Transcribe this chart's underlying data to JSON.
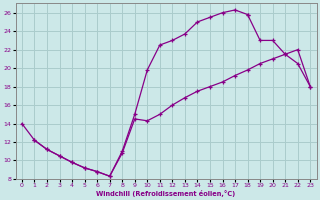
{
  "xlabel": "Windchill (Refroidissement éolien,°C)",
  "bg_color": "#cce8e8",
  "line_color": "#880088",
  "grid_color": "#aacccc",
  "xlim": [
    -0.5,
    23.5
  ],
  "ylim": [
    8,
    27
  ],
  "xticks": [
    0,
    1,
    2,
    3,
    4,
    5,
    6,
    7,
    8,
    9,
    10,
    11,
    12,
    13,
    14,
    15,
    16,
    17,
    18,
    19,
    20,
    21,
    22,
    23
  ],
  "yticks": [
    8,
    10,
    12,
    14,
    16,
    18,
    20,
    22,
    24,
    26
  ],
  "series1": [
    [
      0,
      14
    ],
    [
      1,
      12.2
    ],
    [
      2,
      11.2
    ],
    [
      3,
      10.5
    ],
    [
      4,
      9.8
    ],
    [
      5,
      9.2
    ],
    [
      6,
      8.8
    ],
    [
      7,
      8.3
    ],
    [
      8,
      11.0
    ],
    [
      9,
      15.0
    ],
    [
      10,
      19.8
    ],
    [
      11,
      22.5
    ],
    [
      12,
      23.0
    ],
    [
      13,
      23.7
    ],
    [
      14,
      25.0
    ],
    [
      15,
      25.5
    ],
    [
      16,
      26.0
    ],
    [
      17,
      26.3
    ],
    [
      18,
      25.8
    ]
  ],
  "series2": [
    [
      1,
      12.2
    ],
    [
      2,
      11.2
    ],
    [
      3,
      10.5
    ],
    [
      4,
      9.8
    ],
    [
      5,
      9.2
    ],
    [
      6,
      8.8
    ],
    [
      7,
      8.3
    ],
    [
      8,
      10.8
    ],
    [
      9,
      14.5
    ],
    [
      10,
      14.3
    ],
    [
      11,
      15.0
    ],
    [
      12,
      16.0
    ],
    [
      13,
      16.8
    ],
    [
      14,
      17.5
    ],
    [
      15,
      18.0
    ],
    [
      16,
      18.5
    ],
    [
      17,
      19.2
    ],
    [
      18,
      19.8
    ],
    [
      19,
      20.5
    ],
    [
      20,
      21.0
    ],
    [
      21,
      21.5
    ],
    [
      22,
      22.0
    ],
    [
      23,
      18.0
    ]
  ],
  "series3": [
    [
      18,
      25.8
    ],
    [
      19,
      23.0
    ],
    [
      20,
      23.0
    ],
    [
      21,
      21.5
    ],
    [
      22,
      20.5
    ],
    [
      23,
      18.0
    ]
  ]
}
